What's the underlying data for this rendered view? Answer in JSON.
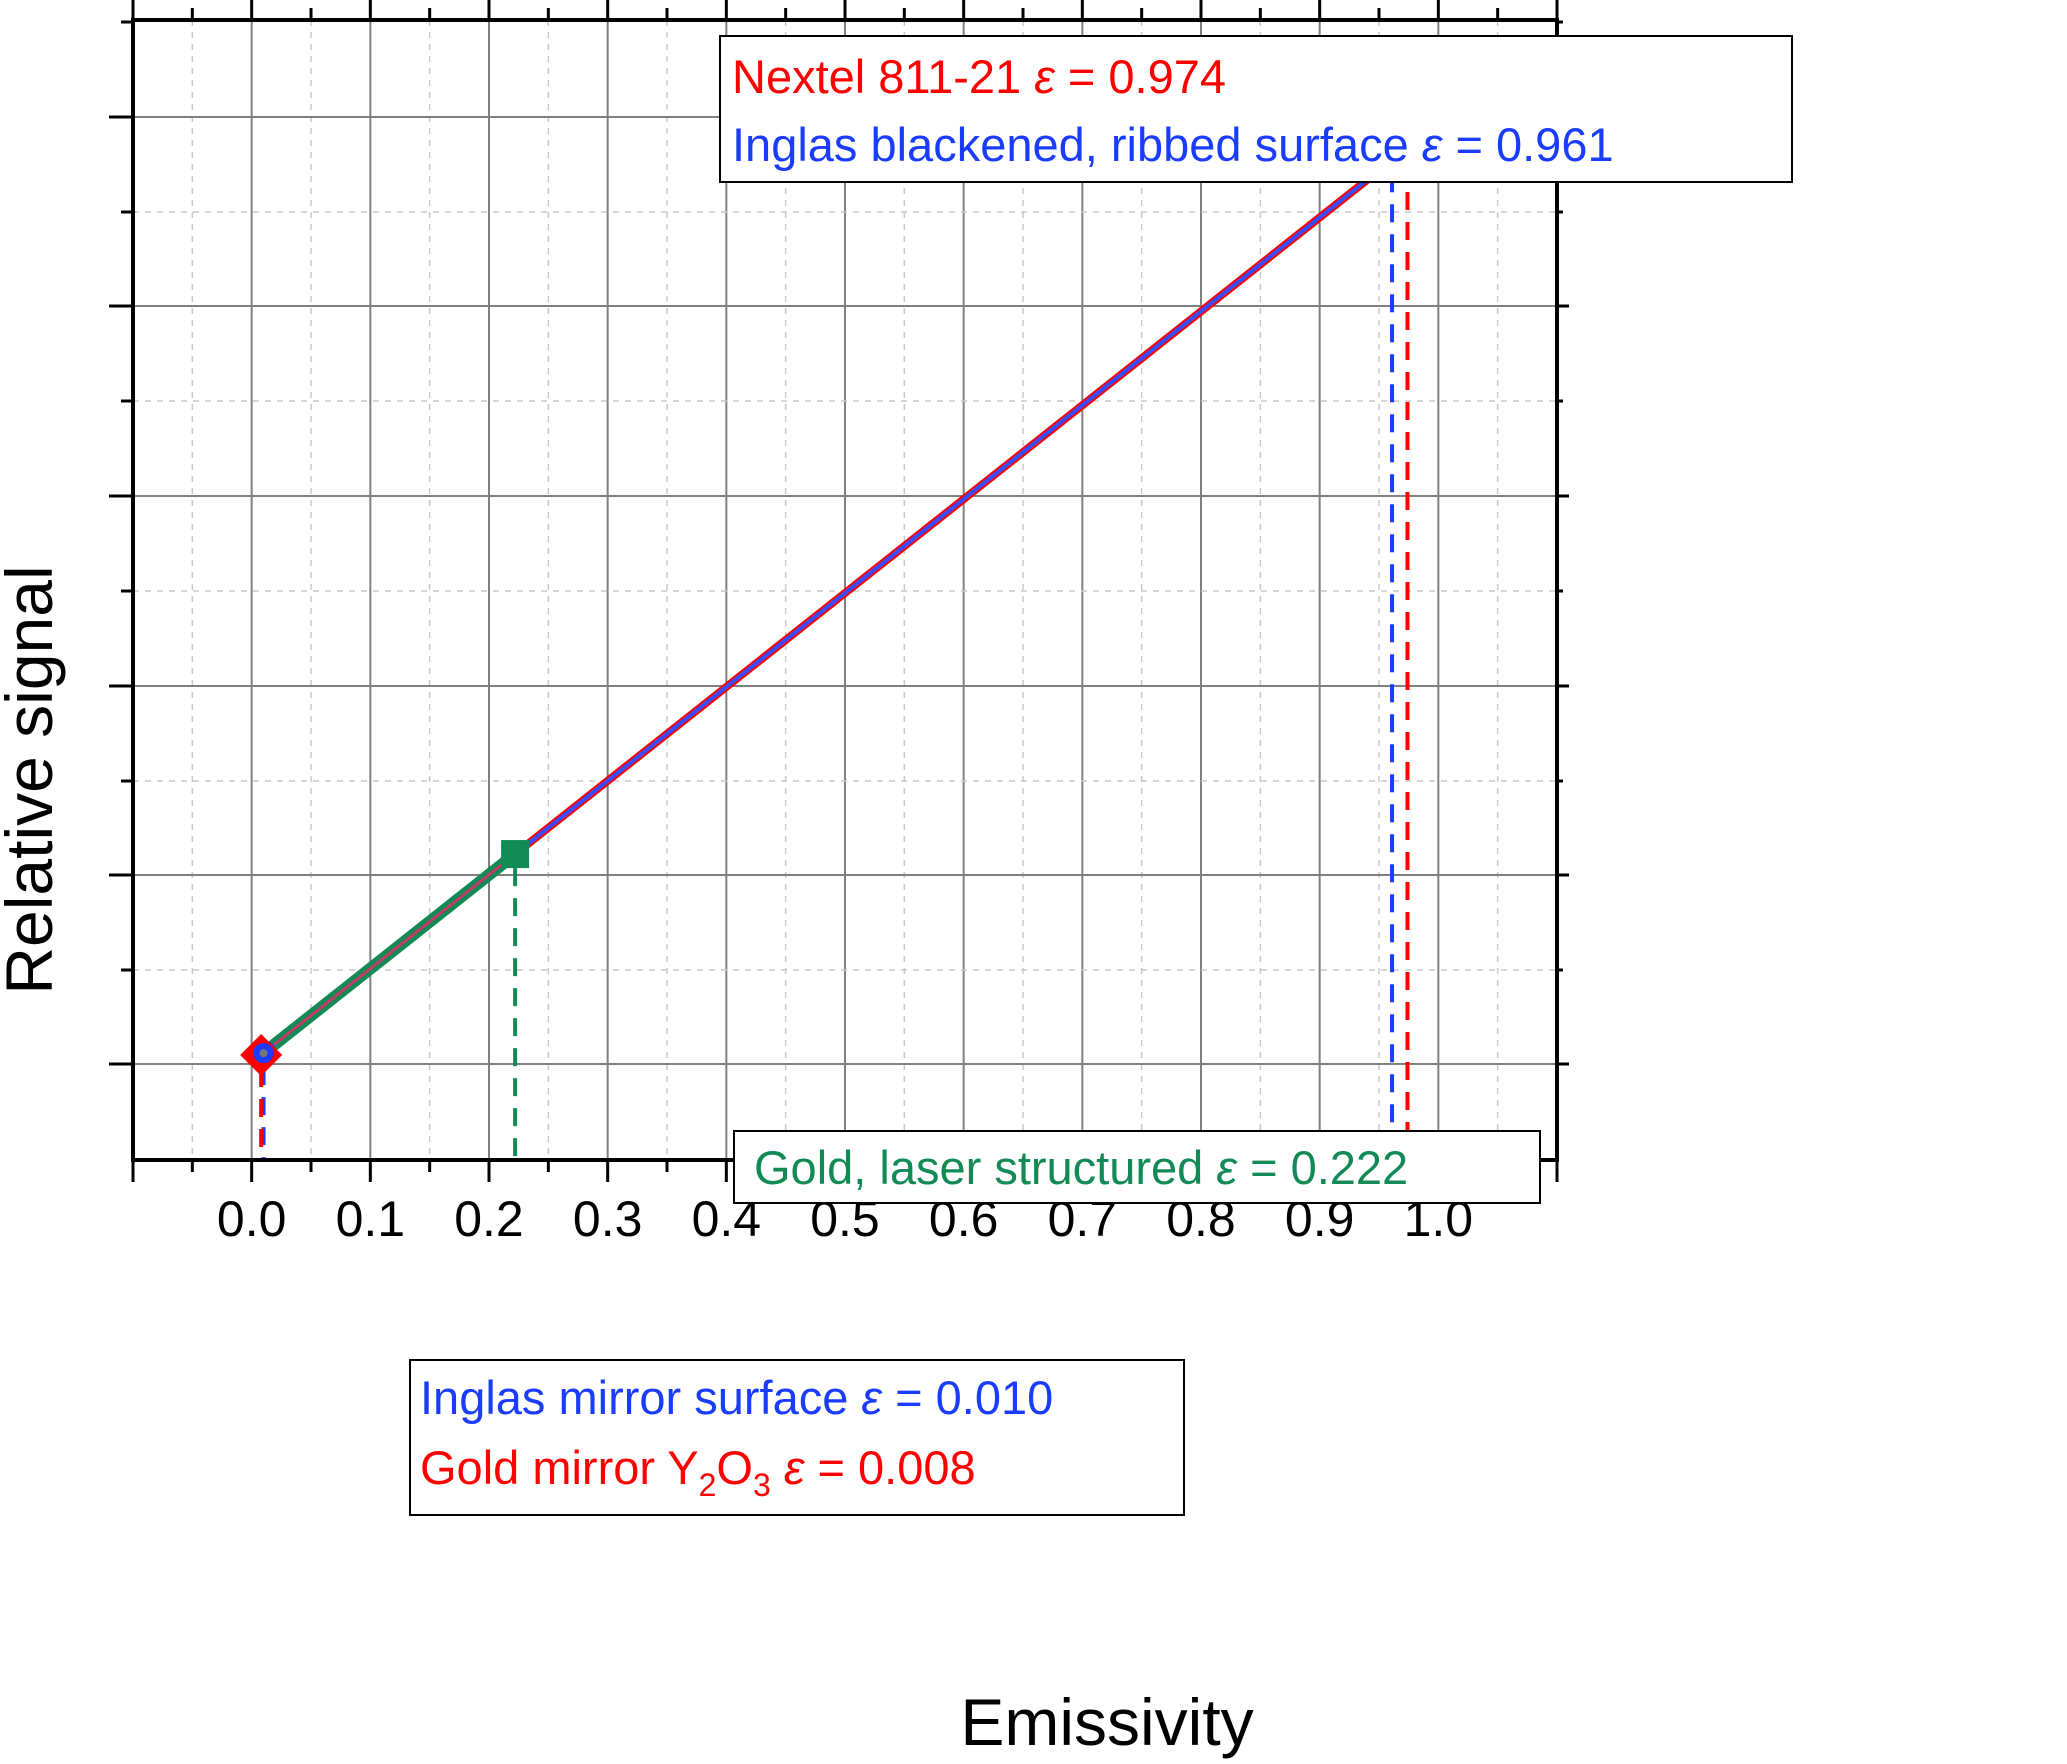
{
  "chart_data": {
    "type": "scatter",
    "xlabel": "Emissivity",
    "ylabel": "Relative signal",
    "xlim": [
      -0.1,
      1.1
    ],
    "xticks": [
      "0.0",
      "0.1",
      "0.2",
      "0.3",
      "0.4",
      "0.5",
      "0.6",
      "0.7",
      "0.8",
      "0.9",
      "1.0"
    ],
    "y_tick_labels": "none",
    "grid": true,
    "legend": "none",
    "series": [
      {
        "label_key": "nextel",
        "color": "#ff0000",
        "marker": "diamond",
        "x": 0.974,
        "y": 0.974,
        "drop_line": true
      },
      {
        "label_key": "inglas_ribbed",
        "color": "#1a3cff",
        "marker": "circle",
        "x": 0.961,
        "y": 0.961,
        "drop_line": true
      },
      {
        "label_key": "gold_laser",
        "color": "#128a55",
        "marker": "square",
        "x": 0.222,
        "y": 0.222,
        "drop_line": true
      },
      {
        "label_key": "inglas_mirror",
        "color": "#1a3cff",
        "marker": "circle",
        "x": 0.01,
        "y": 0.01,
        "drop_line": true
      },
      {
        "label_key": "gold_mirror_y2o3",
        "color": "#ff0000",
        "marker": "diamond",
        "x": 0.008,
        "y": 0.008,
        "drop_line": true
      }
    ],
    "lines": [
      {
        "from": [
          0.008,
          0.008
        ],
        "to": [
          0.974,
          0.974
        ],
        "color": "#ff0000",
        "width": 8
      },
      {
        "from": [
          0.01,
          0.01
        ],
        "to": [
          0.961,
          0.961
        ],
        "color": "#3a4cff",
        "width": 4
      },
      {
        "from": [
          0.008,
          0.008
        ],
        "to": [
          0.222,
          0.222
        ],
        "color": "#128a55",
        "width": 12
      }
    ],
    "annotations": {
      "nextel": {
        "text": "Nextel 811-21 ",
        "eps": "ε",
        "value": " = 0.974",
        "color": "#ff0000"
      },
      "inglas_ribbed": {
        "text": "Inglas blackened, ribbed surface ",
        "eps": "ε",
        "value": " = 0.961",
        "color": "#1a3cff"
      },
      "gold_laser": {
        "text": "Gold, laser structured ",
        "eps": "ε",
        "value": " = 0.222",
        "color": "#128a55"
      },
      "inglas_mirror": {
        "text": "Inglas mirror surface ",
        "eps": "ε",
        "value": " = 0.010",
        "color": "#1a3cff"
      },
      "gold_mirror_y2o3": {
        "text": "Gold mirror Y",
        "sub1": "2",
        "mid": "O",
        "sub2": "3",
        "eps": "ε",
        "value": " = 0.008",
        "color": "#ff0000"
      }
    }
  }
}
